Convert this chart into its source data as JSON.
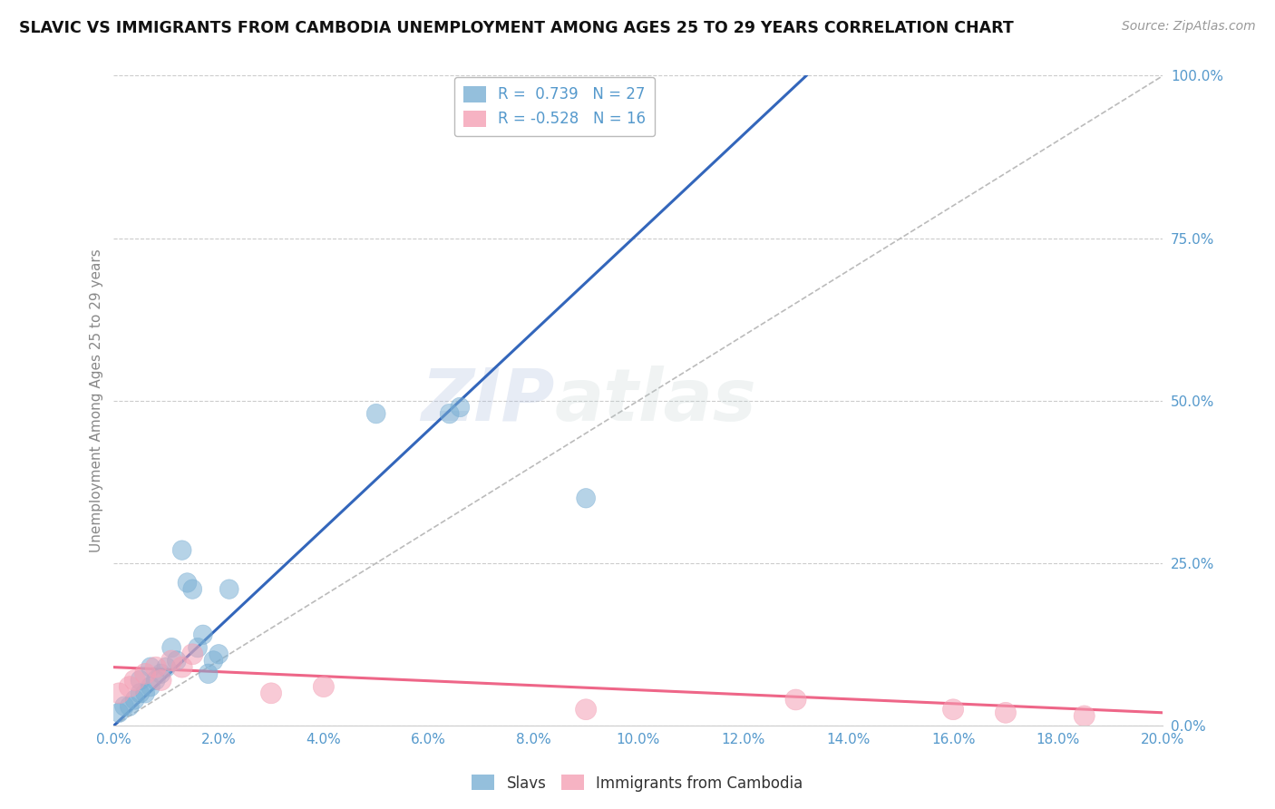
{
  "title": "SLAVIC VS IMMIGRANTS FROM CAMBODIA UNEMPLOYMENT AMONG AGES 25 TO 29 YEARS CORRELATION CHART",
  "source": "Source: ZipAtlas.com",
  "ylabel": "Unemployment Among Ages 25 to 29 years",
  "xlim": [
    0.0,
    0.2
  ],
  "ylim": [
    0.0,
    1.0
  ],
  "xtick_labels": [
    "0.0%",
    "2.0%",
    "4.0%",
    "6.0%",
    "8.0%",
    "10.0%",
    "12.0%",
    "14.0%",
    "16.0%",
    "18.0%",
    "20.0%"
  ],
  "ytick_labels": [
    "0.0%",
    "25.0%",
    "50.0%",
    "75.0%",
    "100.0%"
  ],
  "xtick_values": [
    0.0,
    0.02,
    0.04,
    0.06,
    0.08,
    0.1,
    0.12,
    0.14,
    0.16,
    0.18,
    0.2
  ],
  "ytick_values": [
    0.0,
    0.25,
    0.5,
    0.75,
    1.0
  ],
  "slavic_scatter_x": [
    0.001,
    0.002,
    0.003,
    0.004,
    0.005,
    0.005,
    0.006,
    0.007,
    0.007,
    0.008,
    0.009,
    0.01,
    0.011,
    0.012,
    0.013,
    0.014,
    0.015,
    0.016,
    0.017,
    0.018,
    0.019,
    0.02,
    0.022,
    0.05,
    0.064,
    0.066,
    0.09
  ],
  "slavic_scatter_y": [
    0.02,
    0.03,
    0.03,
    0.04,
    0.05,
    0.07,
    0.05,
    0.06,
    0.09,
    0.07,
    0.08,
    0.09,
    0.12,
    0.1,
    0.27,
    0.22,
    0.21,
    0.12,
    0.14,
    0.08,
    0.1,
    0.11,
    0.21,
    0.48,
    0.48,
    0.49,
    0.35
  ],
  "cambodia_scatter_x": [
    0.001,
    0.003,
    0.004,
    0.006,
    0.008,
    0.009,
    0.011,
    0.013,
    0.015,
    0.03,
    0.04,
    0.09,
    0.13,
    0.16,
    0.17,
    0.185
  ],
  "cambodia_scatter_y": [
    0.05,
    0.06,
    0.07,
    0.08,
    0.09,
    0.07,
    0.1,
    0.09,
    0.11,
    0.05,
    0.06,
    0.025,
    0.04,
    0.025,
    0.02,
    0.015
  ],
  "slavic_line_x": [
    0.0,
    0.132
  ],
  "slavic_line_y": [
    0.0,
    1.0
  ],
  "cambodia_line_x": [
    0.0,
    0.2
  ],
  "cambodia_line_y": [
    0.09,
    0.02
  ],
  "diagonal_line_x": [
    0.0,
    0.2
  ],
  "diagonal_line_y": [
    0.0,
    1.0
  ],
  "slavic_color": "#7AAFD4",
  "cambodia_color": "#F4A0B5",
  "slavic_line_color": "#3366BB",
  "cambodia_line_color": "#EE6688",
  "diagonal_color": "#BBBBBB",
  "R_slavic": 0.739,
  "N_slavic": 27,
  "R_cambodia": -0.528,
  "N_cambodia": 16,
  "legend_slavic": "Slavs",
  "legend_cambodia": "Immigrants from Cambodia",
  "watermark_zip": "ZIP",
  "watermark_atlas": "atlas",
  "background_color": "#FFFFFF",
  "grid_color": "#CCCCCC"
}
